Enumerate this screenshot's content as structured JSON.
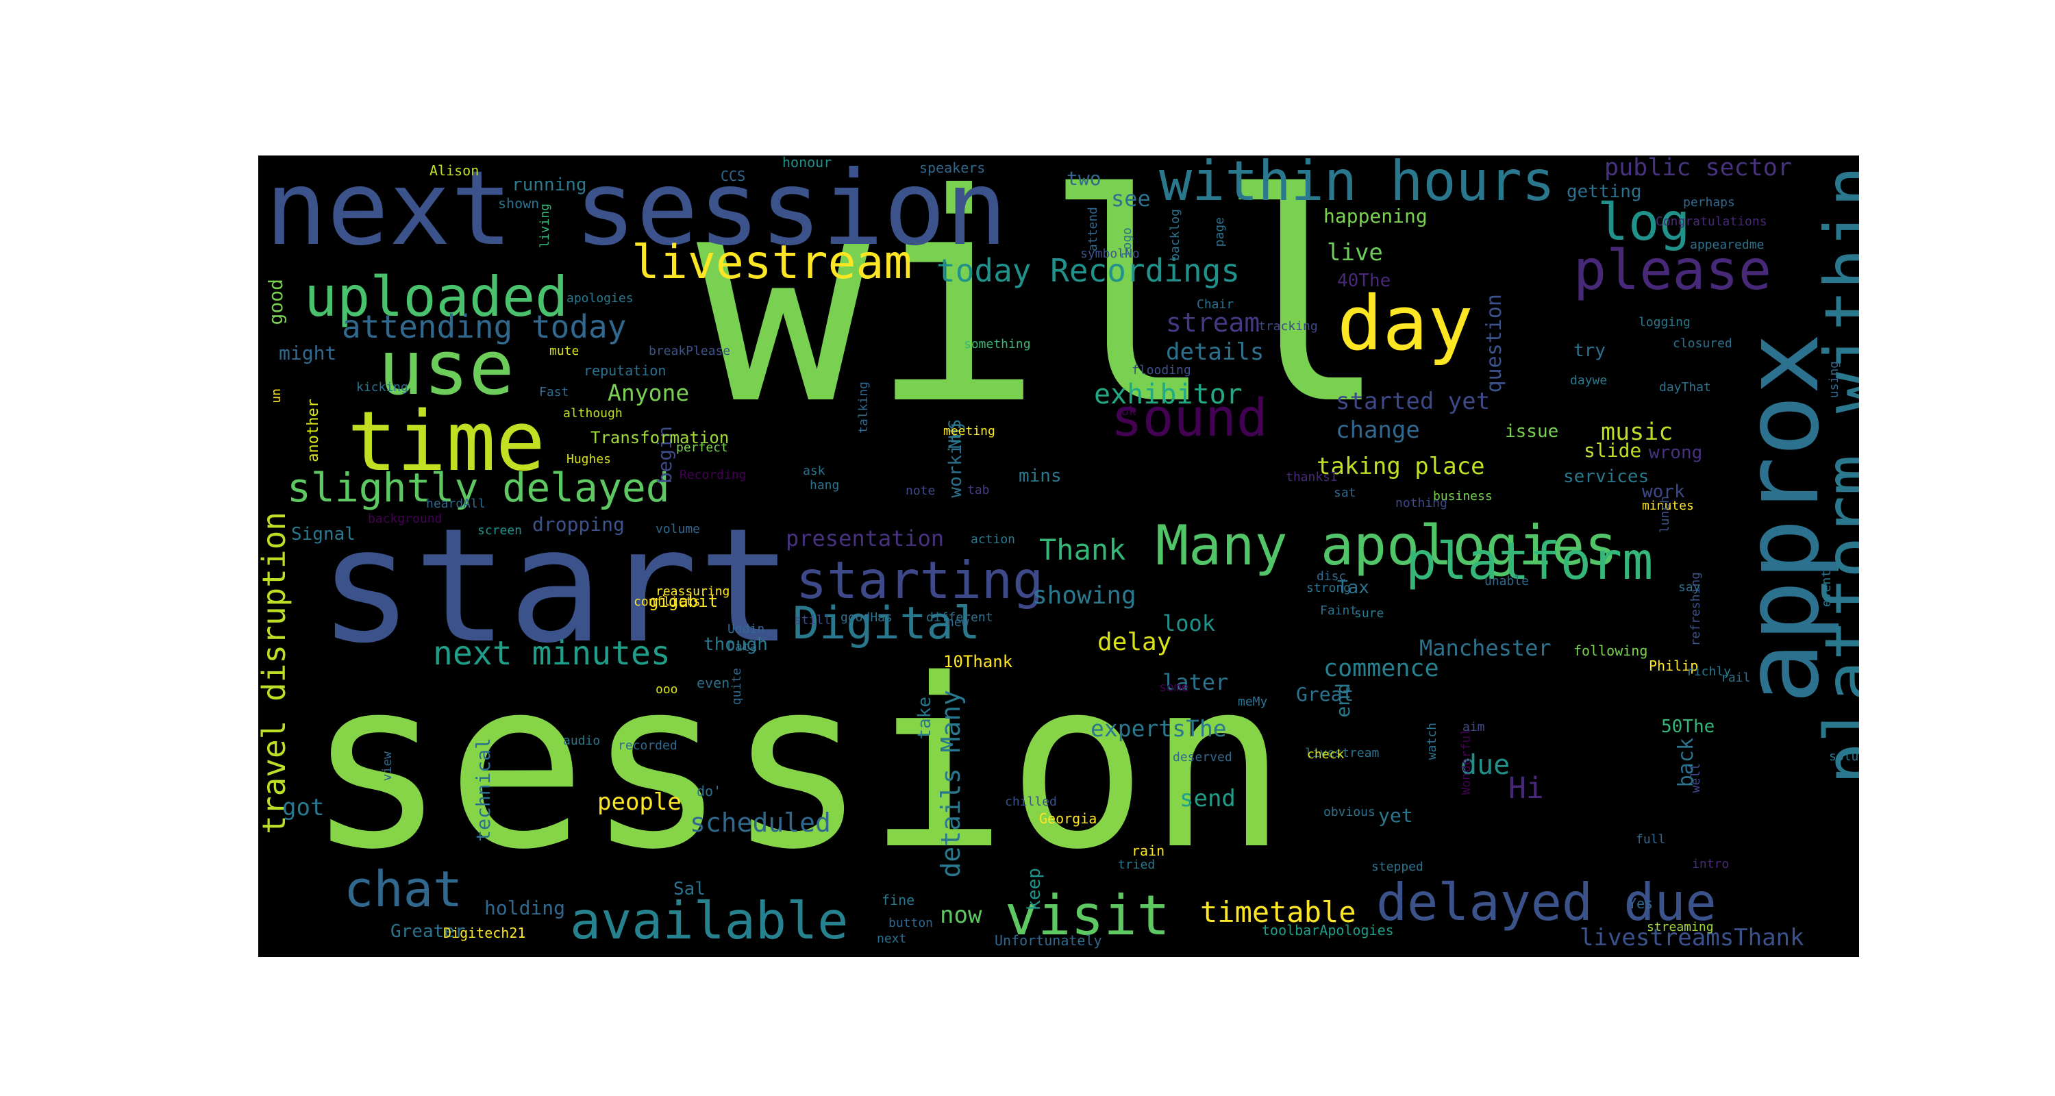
{
  "words": [
    {
      "text": "will",
      "color": "#7ad151"
    },
    {
      "text": "session",
      "color": "#86d549"
    },
    {
      "text": "start",
      "color": "#3b528b"
    },
    {
      "text": "next session",
      "color": "#3b528b"
    },
    {
      "text": "approx",
      "color": "#2c728e"
    },
    {
      "text": "platform within",
      "color": "#2a788e"
    },
    {
      "text": "within hours",
      "color": "#2a788e"
    },
    {
      "text": "day",
      "color": "#fde725"
    },
    {
      "text": "time",
      "color": "#c2df23"
    },
    {
      "text": "use",
      "color": "#6ccd5a"
    },
    {
      "text": "please",
      "color": "#482878"
    },
    {
      "text": "Many apologies",
      "color": "#52c569"
    },
    {
      "text": "uploaded",
      "color": "#4ac16d"
    },
    {
      "text": "livestream",
      "color": "#fde725"
    },
    {
      "text": "log",
      "color": "#21918c"
    },
    {
      "text": "sound",
      "color": "#440154"
    },
    {
      "text": "platform",
      "color": "#35b779"
    },
    {
      "text": "delayed due",
      "color": "#3b528b"
    },
    {
      "text": "visit",
      "color": "#5ec962"
    },
    {
      "text": "available",
      "color": "#26828e"
    },
    {
      "text": "chat",
      "color": "#31688e"
    },
    {
      "text": "starting",
      "color": "#3e4989"
    },
    {
      "text": "Digital",
      "color": "#2a788e"
    },
    {
      "text": "slightly delayed",
      "color": "#5ec962"
    },
    {
      "text": "travel disruption",
      "color": "#bddf26"
    },
    {
      "text": "today Recordings",
      "color": "#21918c"
    },
    {
      "text": "attending today",
      "color": "#31688e"
    },
    {
      "text": "next minutes",
      "color": "#1f9e89"
    },
    {
      "text": "public sector",
      "color": "#46327e"
    },
    {
      "text": "exhibitor",
      "color": "#22a884"
    },
    {
      "text": "timetable",
      "color": "#fde725"
    },
    {
      "text": "livestreamsThank",
      "color": "#3b528b"
    },
    {
      "text": "scheduled",
      "color": "#31688e"
    },
    {
      "text": "details Many",
      "color": "#2a788e"
    },
    {
      "text": "Hi",
      "color": "#482878"
    },
    {
      "text": "started yet",
      "color": "#3e4989"
    },
    {
      "text": "taking place",
      "color": "#c2df23"
    },
    {
      "text": "stream",
      "color": "#443983"
    },
    {
      "text": "details",
      "color": "#2c728e"
    },
    {
      "text": "change",
      "color": "#31688e"
    },
    {
      "text": "Thank",
      "color": "#35b779"
    },
    {
      "text": "showing",
      "color": "#2a788e"
    },
    {
      "text": "delay",
      "color": "#d8e219"
    },
    {
      "text": "Anyone",
      "color": "#7ad151"
    },
    {
      "text": "commence",
      "color": "#26828e"
    },
    {
      "text": "Manchester",
      "color": "#2c728e"
    },
    {
      "text": "music",
      "color": "#bddf26"
    },
    {
      "text": "people",
      "color": "#fde725"
    },
    {
      "text": "due",
      "color": "#21918c"
    },
    {
      "text": "send",
      "color": "#1f9e89"
    },
    {
      "text": "look",
      "color": "#21918c"
    },
    {
      "text": "later",
      "color": "#2c728e"
    },
    {
      "text": "expertsThe",
      "color": "#2a788e"
    },
    {
      "text": "presentation",
      "color": "#46327e"
    },
    {
      "text": "live",
      "color": "#6ccd5a"
    },
    {
      "text": "see",
      "color": "#2c728e"
    },
    {
      "text": "two",
      "color": "#31688e"
    },
    {
      "text": "got",
      "color": "#2a788e"
    },
    {
      "text": "holding",
      "color": "#31688e"
    },
    {
      "text": "now",
      "color": "#5ec962"
    },
    {
      "text": "question",
      "color": "#3b528b"
    },
    {
      "text": "happening",
      "color": "#7ad151"
    },
    {
      "text": "technical",
      "color": "#2c728e"
    },
    {
      "text": "begin",
      "color": "#3e4989"
    },
    {
      "text": "end",
      "color": "#2a788e"
    },
    {
      "text": "back",
      "color": "#2c728e"
    },
    {
      "text": "keep",
      "color": "#21918c"
    },
    {
      "text": "yet",
      "color": "#2a788e"
    },
    {
      "text": "Great",
      "color": "#2c728e"
    },
    {
      "text": "dropping",
      "color": "#3b528b"
    },
    {
      "text": "working",
      "color": "#2c728e"
    },
    {
      "text": "services",
      "color": "#2a788e"
    },
    {
      "text": "try",
      "color": "#2c728e"
    },
    {
      "text": "issue",
      "color": "#7ad151"
    },
    {
      "text": "slide",
      "color": "#bddf26"
    },
    {
      "text": "mins",
      "color": "#2a788e"
    },
    {
      "text": "running",
      "color": "#2a788e"
    },
    {
      "text": "getting",
      "color": "#2c728e"
    },
    {
      "text": "though",
      "color": "#2a788e"
    },
    {
      "text": "gigabit",
      "color": "#fde725"
    },
    {
      "text": "10Thank",
      "color": "#fde725"
    },
    {
      "text": "Transformation",
      "color": "#a0da39"
    },
    {
      "text": "NHS",
      "color": "#2a788e"
    },
    {
      "text": "Sal",
      "color": "#2c728e"
    },
    {
      "text": "Greater",
      "color": "#2c728e"
    },
    {
      "text": "might",
      "color": "#31688e"
    },
    {
      "text": "good",
      "color": "#7ad151"
    },
    {
      "text": "Signal",
      "color": "#2a788e"
    },
    {
      "text": "work",
      "color": "#3e4989"
    },
    {
      "text": "wrong",
      "color": "#46327e"
    },
    {
      "text": "40The",
      "color": "#482878"
    },
    {
      "text": "50The",
      "color": "#35b779"
    },
    {
      "text": "fine",
      "color": "#2a788e"
    },
    {
      "text": "Tax",
      "color": "#2c728e"
    },
    {
      "text": "take",
      "color": "#2a788e"
    },
    {
      "text": "do'",
      "color": "#2c728e"
    },
    {
      "text": "Georgia",
      "color": "#fde725"
    },
    {
      "text": "rain",
      "color": "#fde725"
    },
    {
      "text": "Digitech21",
      "color": "#fde725"
    },
    {
      "text": "Unfortunately",
      "color": "#31688e"
    },
    {
      "text": "toolbarApologies",
      "color": "#1f9e89"
    },
    {
      "text": "streaming",
      "color": "#a0da39"
    },
    {
      "text": "Yes",
      "color": "#31688e"
    },
    {
      "text": "following",
      "color": "#7ad151"
    },
    {
      "text": "Philip",
      "color": "#fde725"
    },
    {
      "text": "speakers",
      "color": "#31688e"
    },
    {
      "text": "honour",
      "color": "#21918c"
    },
    {
      "text": "Alison",
      "color": "#c2df23"
    },
    {
      "text": "CCS",
      "color": "#31688e"
    },
    {
      "text": "shown",
      "color": "#2c728e"
    },
    {
      "text": "living",
      "color": "#35b779"
    },
    {
      "text": "attend",
      "color": "#31688e"
    },
    {
      "text": "page",
      "color": "#2c728e"
    },
    {
      "text": "symbolNo",
      "color": "#3b528b"
    },
    {
      "text": "logo",
      "color": "#2c728e"
    },
    {
      "text": "backlog",
      "color": "#2c728e"
    },
    {
      "text": "Chair",
      "color": "#2c728e"
    },
    {
      "text": "logging",
      "color": "#2a788e"
    },
    {
      "text": "appearedme",
      "color": "#2c728e"
    },
    {
      "text": "Congratulations",
      "color": "#482878"
    },
    {
      "text": "perhaps",
      "color": "#31688e"
    },
    {
      "text": "apologies",
      "color": "#2a788e"
    },
    {
      "text": "mute",
      "color": "#d8e219"
    },
    {
      "text": "breakPlease",
      "color": "#3b528b"
    },
    {
      "text": "something",
      "color": "#35b779"
    },
    {
      "text": "flooding",
      "color": "#3b528b"
    },
    {
      "text": "tracking",
      "color": "#3e4989"
    },
    {
      "text": "closured",
      "color": "#2c728e"
    },
    {
      "text": "daywe",
      "color": "#2a788e"
    },
    {
      "text": "dayThat",
      "color": "#2c728e"
    },
    {
      "text": "using",
      "color": "#31688e"
    },
    {
      "text": "reputation",
      "color": "#2c728e"
    },
    {
      "text": "although",
      "color": "#c2df23"
    },
    {
      "text": "Fast",
      "color": "#31688e"
    },
    {
      "text": "kicking",
      "color": "#2c728e"
    },
    {
      "text": "another",
      "color": "#d8e219"
    },
    {
      "text": "un",
      "color": "#fde725"
    },
    {
      "text": "talking",
      "color": "#31688e"
    },
    {
      "text": "ok",
      "color": "#440154"
    },
    {
      "text": "meeting",
      "color": "#fde725"
    },
    {
      "text": "Hughes",
      "color": "#d8e219"
    },
    {
      "text": "perfect",
      "color": "#7ad151"
    },
    {
      "text": "Recording",
      "color": "#440154"
    },
    {
      "text": "ask",
      "color": "#2c728e"
    },
    {
      "text": "hang",
      "color": "#2c728e"
    },
    {
      "text": "note",
      "color": "#3e4989"
    },
    {
      "text": "tab",
      "color": "#443983"
    },
    {
      "text": "thanksI",
      "color": "#482878"
    },
    {
      "text": "sat",
      "color": "#31688e"
    },
    {
      "text": "business",
      "color": "#7ad151"
    },
    {
      "text": "heardAll",
      "color": "#31688e"
    },
    {
      "text": "background",
      "color": "#440154"
    },
    {
      "text": "screen",
      "color": "#21918c"
    },
    {
      "text": "volume",
      "color": "#31688e"
    },
    {
      "text": "action",
      "color": "#2a788e"
    },
    {
      "text": "nothing",
      "color": "#3e4989"
    },
    {
      "text": "minutes",
      "color": "#fde725"
    },
    {
      "text": "lunch",
      "color": "#3b528b"
    },
    {
      "text": "disc",
      "color": "#31688e"
    },
    {
      "text": "strong",
      "color": "#2c728e"
    },
    {
      "text": "unable",
      "color": "#31688e"
    },
    {
      "text": "refreshing",
      "color": "#3b528b"
    },
    {
      "text": "event",
      "color": "#2a788e"
    },
    {
      "text": "reassuring",
      "color": "#fde725"
    },
    {
      "text": "conflicts",
      "color": "#fde725"
    },
    {
      "text": "say",
      "color": "#2c728e"
    },
    {
      "text": "Faint",
      "color": "#2c728e"
    },
    {
      "text": "sure",
      "color": "#2a788e"
    },
    {
      "text": "goodHas",
      "color": "#2c728e"
    },
    {
      "text": "different",
      "color": "#2c728e"
    },
    {
      "text": "still",
      "color": "#3e4989"
    },
    {
      "text": "Uddin",
      "color": "#31688e"
    },
    {
      "text": "new",
      "color": "#31688e"
    },
    {
      "text": "Data",
      "color": "#2c728e"
    },
    {
      "text": "even",
      "color": "#2c728e"
    },
    {
      "text": "ooo",
      "color": "#d8e219"
    },
    {
      "text": "quite",
      "color": "#31688e"
    },
    {
      "text": "some",
      "color": "#440154"
    },
    {
      "text": "richly",
      "color": "#2a788e"
    },
    {
      "text": "rail",
      "color": "#2c728e"
    },
    {
      "text": "meMy",
      "color": "#2c728e"
    },
    {
      "text": "audio",
      "color": "#2a788e"
    },
    {
      "text": "recorded",
      "color": "#31688e"
    },
    {
      "text": "deserved",
      "color": "#31688e"
    },
    {
      "text": "livestream",
      "color": "#2c728e"
    },
    {
      "text": "check",
      "color": "#d8e219"
    },
    {
      "text": "aim",
      "color": "#3e4989"
    },
    {
      "text": "watch",
      "color": "#2c728e"
    },
    {
      "text": "Wonderful",
      "color": "#440154"
    },
    {
      "text": "well",
      "color": "#3e4989"
    },
    {
      "text": "solutions",
      "color": "#2a788e"
    },
    {
      "text": "view",
      "color": "#31688e"
    },
    {
      "text": "chilled",
      "color": "#3b528b"
    },
    {
      "text": "obvious",
      "color": "#2c728e"
    },
    {
      "text": "full",
      "color": "#31688e"
    },
    {
      "text": "tried",
      "color": "#2a788e"
    },
    {
      "text": "stepped",
      "color": "#2c728e"
    },
    {
      "text": "intro",
      "color": "#482878"
    },
    {
      "text": "button",
      "color": "#31688e"
    },
    {
      "text": "next",
      "color": "#2c728e"
    }
  ]
}
